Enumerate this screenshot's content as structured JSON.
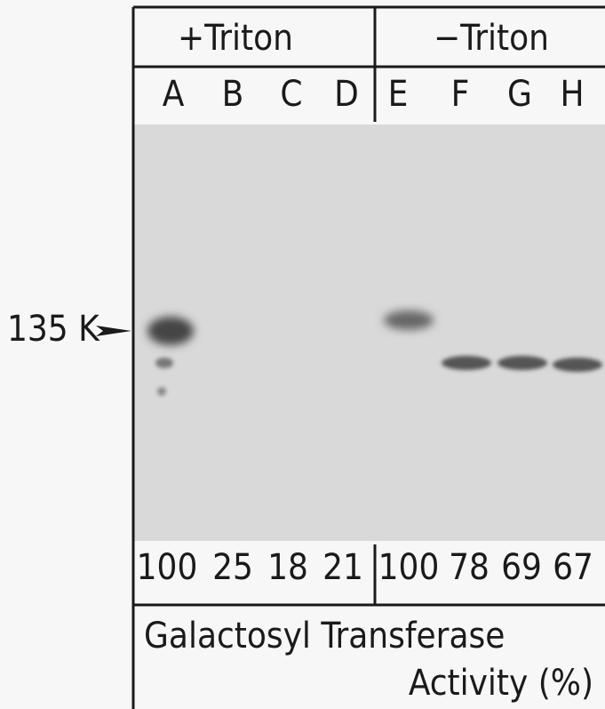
{
  "header": {
    "groups": [
      "+Triton",
      "−Triton"
    ],
    "lanes": [
      "A",
      "B",
      "C",
      "D",
      "E",
      "F",
      "G",
      "H"
    ]
  },
  "marker": "135 K",
  "activity": {
    "values": [
      100,
      25,
      18,
      21,
      100,
      78,
      69,
      67
    ]
  },
  "caption": {
    "line1": "Galactosyl Transferase",
    "line2": "Activity (%)"
  }
}
